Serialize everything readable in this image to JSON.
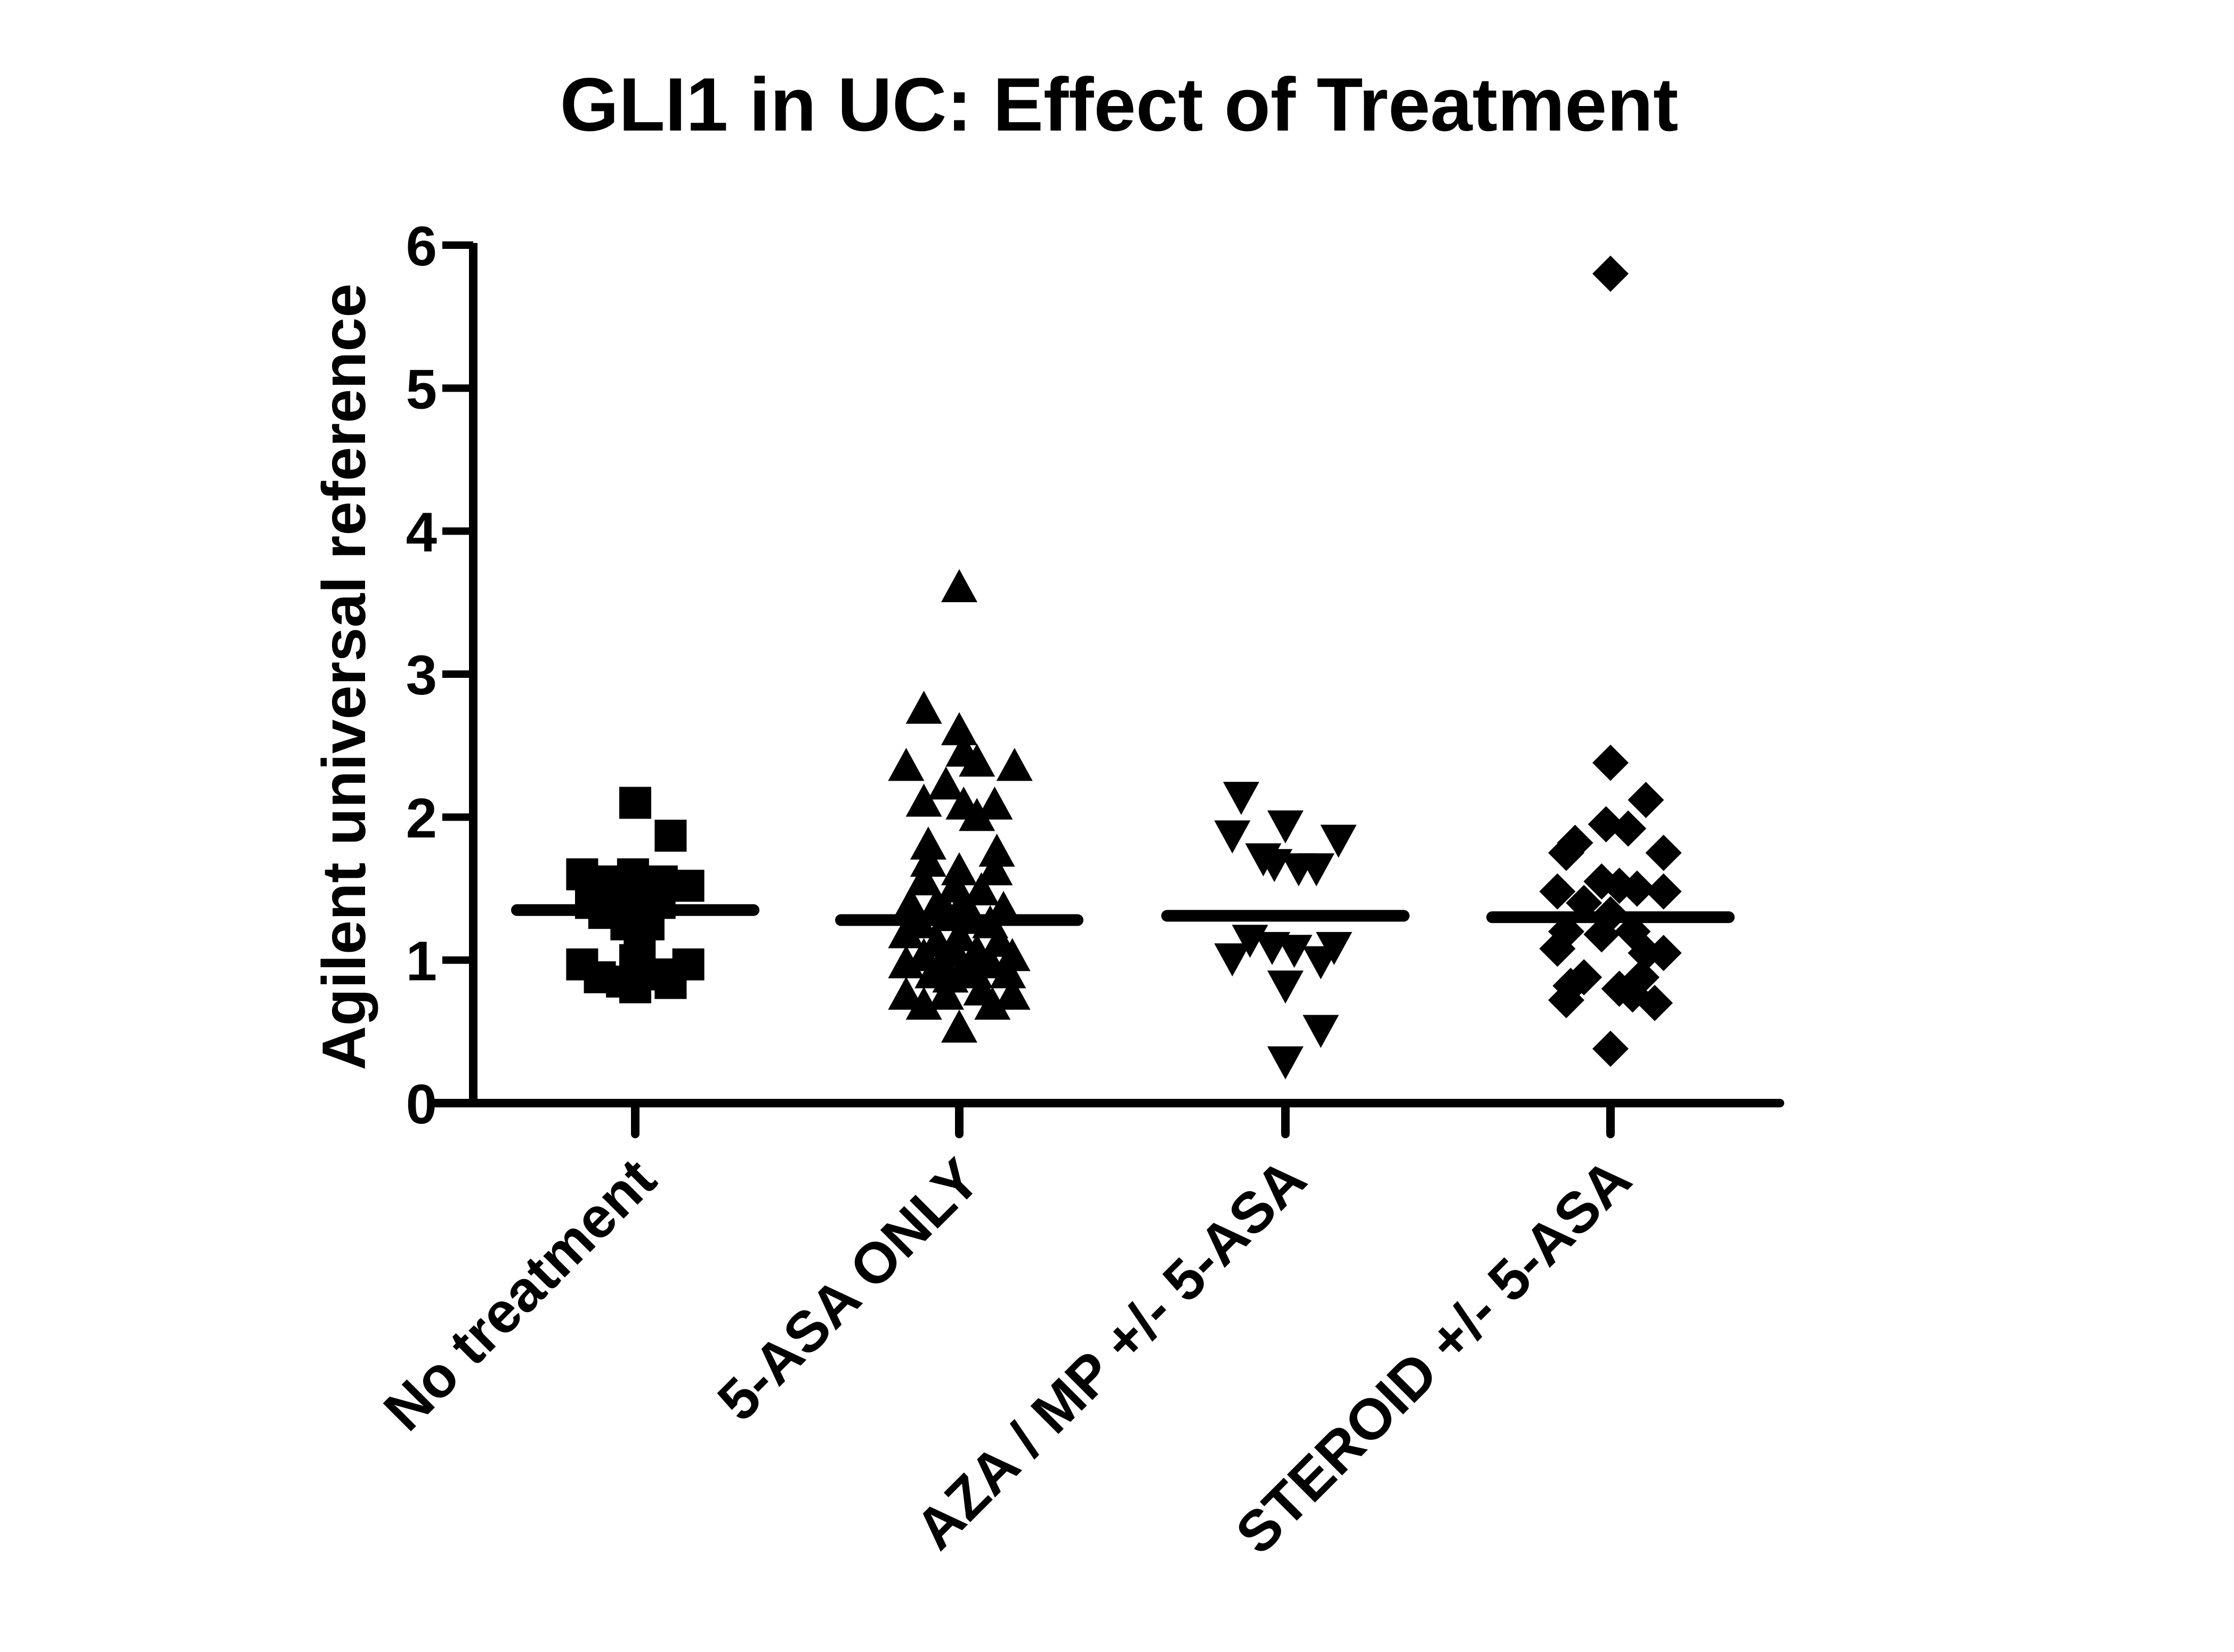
{
  "chart_data": {
    "type": "scatter",
    "title": "GLI1 in UC: Effect of Treatment",
    "xlabel": "",
    "ylabel": "Agilent universal reference",
    "ylim": [
      0,
      6
    ],
    "yticks": [
      0,
      1,
      2,
      3,
      4,
      5,
      6
    ],
    "grid": false,
    "legend": "none",
    "color": "#000000",
    "categories": [
      "No treatment",
      "5-ASA ONLY",
      "AZA / MP +/- 5-ASA",
      "STEROID +/- 5-ASA"
    ],
    "series": [
      {
        "category": "No treatment",
        "marker": "square",
        "mean": 1.35,
        "points": [
          {
            "dx": 0.0,
            "y": 2.1
          },
          {
            "dx": 0.16,
            "y": 1.87
          },
          {
            "dx": -0.24,
            "y": 1.6
          },
          {
            "dx": -0.15,
            "y": 1.55
          },
          {
            "dx": -0.01,
            "y": 1.6
          },
          {
            "dx": 0.12,
            "y": 1.55
          },
          {
            "dx": 0.24,
            "y": 1.52
          },
          {
            "dx": -0.2,
            "y": 1.4
          },
          {
            "dx": -0.09,
            "y": 1.4
          },
          {
            "dx": 0.02,
            "y": 1.38
          },
          {
            "dx": 0.11,
            "y": 1.4
          },
          {
            "dx": -0.14,
            "y": 1.33
          },
          {
            "dx": -0.04,
            "y": 1.25
          },
          {
            "dx": 0.06,
            "y": 1.25
          },
          {
            "dx": 0.02,
            "y": 1.08
          },
          {
            "dx": 0.0,
            "y": 1.0
          },
          {
            "dx": -0.24,
            "y": 0.97
          },
          {
            "dx": 0.24,
            "y": 0.97
          },
          {
            "dx": -0.16,
            "y": 0.88
          },
          {
            "dx": 0.1,
            "y": 0.9
          },
          {
            "dx": -0.06,
            "y": 0.85
          },
          {
            "dx": 0.16,
            "y": 0.84
          },
          {
            "dx": 0.0,
            "y": 0.81
          }
        ]
      },
      {
        "category": "5-ASA ONLY",
        "marker": "triangle-up",
        "mean": 1.28,
        "points": [
          {
            "dx": 0.0,
            "y": 3.6
          },
          {
            "dx": -0.16,
            "y": 2.75
          },
          {
            "dx": 0.0,
            "y": 2.6
          },
          {
            "dx": 0.02,
            "y": 2.45
          },
          {
            "dx": 0.08,
            "y": 2.38
          },
          {
            "dx": -0.24,
            "y": 2.35
          },
          {
            "dx": 0.25,
            "y": 2.35
          },
          {
            "dx": -0.06,
            "y": 2.22
          },
          {
            "dx": -0.16,
            "y": 2.1
          },
          {
            "dx": 0.02,
            "y": 2.08
          },
          {
            "dx": 0.16,
            "y": 2.08
          },
          {
            "dx": 0.08,
            "y": 2.0
          },
          {
            "dx": -0.14,
            "y": 1.8
          },
          {
            "dx": 0.17,
            "y": 1.75
          },
          {
            "dx": -0.14,
            "y": 1.68
          },
          {
            "dx": 0.0,
            "y": 1.62
          },
          {
            "dx": 0.16,
            "y": 1.62
          },
          {
            "dx": -0.16,
            "y": 1.55
          },
          {
            "dx": -0.02,
            "y": 1.5
          },
          {
            "dx": 0.1,
            "y": 1.48
          },
          {
            "dx": 0.02,
            "y": 1.4
          },
          {
            "dx": -0.22,
            "y": 1.38
          },
          {
            "dx": -0.1,
            "y": 1.38
          },
          {
            "dx": 0.2,
            "y": 1.35
          },
          {
            "dx": -0.05,
            "y": 1.3
          },
          {
            "dx": 0.06,
            "y": 1.28
          },
          {
            "dx": -0.18,
            "y": 1.25
          },
          {
            "dx": 0.14,
            "y": 1.25
          },
          {
            "dx": -0.24,
            "y": 1.18
          },
          {
            "dx": 0.0,
            "y": 1.16
          },
          {
            "dx": -0.1,
            "y": 1.12
          },
          {
            "dx": 0.18,
            "y": 1.12
          },
          {
            "dx": -0.02,
            "y": 1.05
          },
          {
            "dx": 0.08,
            "y": 1.05
          },
          {
            "dx": -0.16,
            "y": 1.02
          },
          {
            "dx": 0.24,
            "y": 1.02
          },
          {
            "dx": -0.24,
            "y": 0.97
          },
          {
            "dx": -0.08,
            "y": 0.97
          },
          {
            "dx": 0.14,
            "y": 0.97
          },
          {
            "dx": 0.02,
            "y": 0.93
          },
          {
            "dx": -0.12,
            "y": 0.9
          },
          {
            "dx": 0.07,
            "y": 0.9
          },
          {
            "dx": 0.22,
            "y": 0.9
          },
          {
            "dx": -0.04,
            "y": 0.87
          },
          {
            "dx": -0.24,
            "y": 0.75
          },
          {
            "dx": 0.24,
            "y": 0.75
          },
          {
            "dx": -0.06,
            "y": 0.75
          },
          {
            "dx": 0.1,
            "y": 0.78
          },
          {
            "dx": 0.15,
            "y": 0.68
          },
          {
            "dx": -0.16,
            "y": 0.68
          },
          {
            "dx": 0.0,
            "y": 0.52
          }
        ]
      },
      {
        "category": "AZA / MP +/- 5-ASA",
        "marker": "triangle-down",
        "mean": 1.31,
        "points": [
          {
            "dx": -0.2,
            "y": 2.15
          },
          {
            "dx": -0.24,
            "y": 1.88
          },
          {
            "dx": 0.0,
            "y": 1.95
          },
          {
            "dx": 0.24,
            "y": 1.85
          },
          {
            "dx": -0.1,
            "y": 1.72
          },
          {
            "dx": -0.05,
            "y": 1.68
          },
          {
            "dx": 0.06,
            "y": 1.65
          },
          {
            "dx": 0.14,
            "y": 1.65
          },
          {
            "dx": -0.16,
            "y": 1.15
          },
          {
            "dx": -0.06,
            "y": 1.1
          },
          {
            "dx": 0.04,
            "y": 1.08
          },
          {
            "dx": 0.22,
            "y": 1.1
          },
          {
            "dx": -0.24,
            "y": 1.02
          },
          {
            "dx": 0.16,
            "y": 1.0
          },
          {
            "dx": 0.0,
            "y": 0.83
          },
          {
            "dx": 0.16,
            "y": 0.52
          },
          {
            "dx": 0.0,
            "y": 0.3
          }
        ]
      },
      {
        "category": "STEROID +/- 5-ASA",
        "marker": "diamond",
        "mean": 1.3,
        "points": [
          {
            "dx": 0.0,
            "y": 5.8
          },
          {
            "dx": 0.0,
            "y": 2.38
          },
          {
            "dx": 0.16,
            "y": 2.12
          },
          {
            "dx": -0.02,
            "y": 1.95
          },
          {
            "dx": 0.08,
            "y": 1.92
          },
          {
            "dx": -0.16,
            "y": 1.82
          },
          {
            "dx": -0.2,
            "y": 1.75
          },
          {
            "dx": 0.24,
            "y": 1.75
          },
          {
            "dx": -0.04,
            "y": 1.55
          },
          {
            "dx": 0.04,
            "y": 1.52
          },
          {
            "dx": 0.12,
            "y": 1.5
          },
          {
            "dx": -0.24,
            "y": 1.48
          },
          {
            "dx": 0.24,
            "y": 1.48
          },
          {
            "dx": -0.12,
            "y": 1.4
          },
          {
            "dx": 0.0,
            "y": 1.32
          },
          {
            "dx": 0.1,
            "y": 1.2
          },
          {
            "dx": -0.2,
            "y": 1.2
          },
          {
            "dx": -0.04,
            "y": 1.18
          },
          {
            "dx": -0.24,
            "y": 1.08
          },
          {
            "dx": 0.16,
            "y": 1.05
          },
          {
            "dx": 0.24,
            "y": 1.05
          },
          {
            "dx": -0.12,
            "y": 0.88
          },
          {
            "dx": 0.14,
            "y": 0.88
          },
          {
            "dx": -0.18,
            "y": 0.82
          },
          {
            "dx": 0.04,
            "y": 0.8
          },
          {
            "dx": 0.1,
            "y": 0.76
          },
          {
            "dx": -0.2,
            "y": 0.72
          },
          {
            "dx": 0.2,
            "y": 0.7
          },
          {
            "dx": 0.0,
            "y": 0.38
          }
        ]
      }
    ]
  }
}
